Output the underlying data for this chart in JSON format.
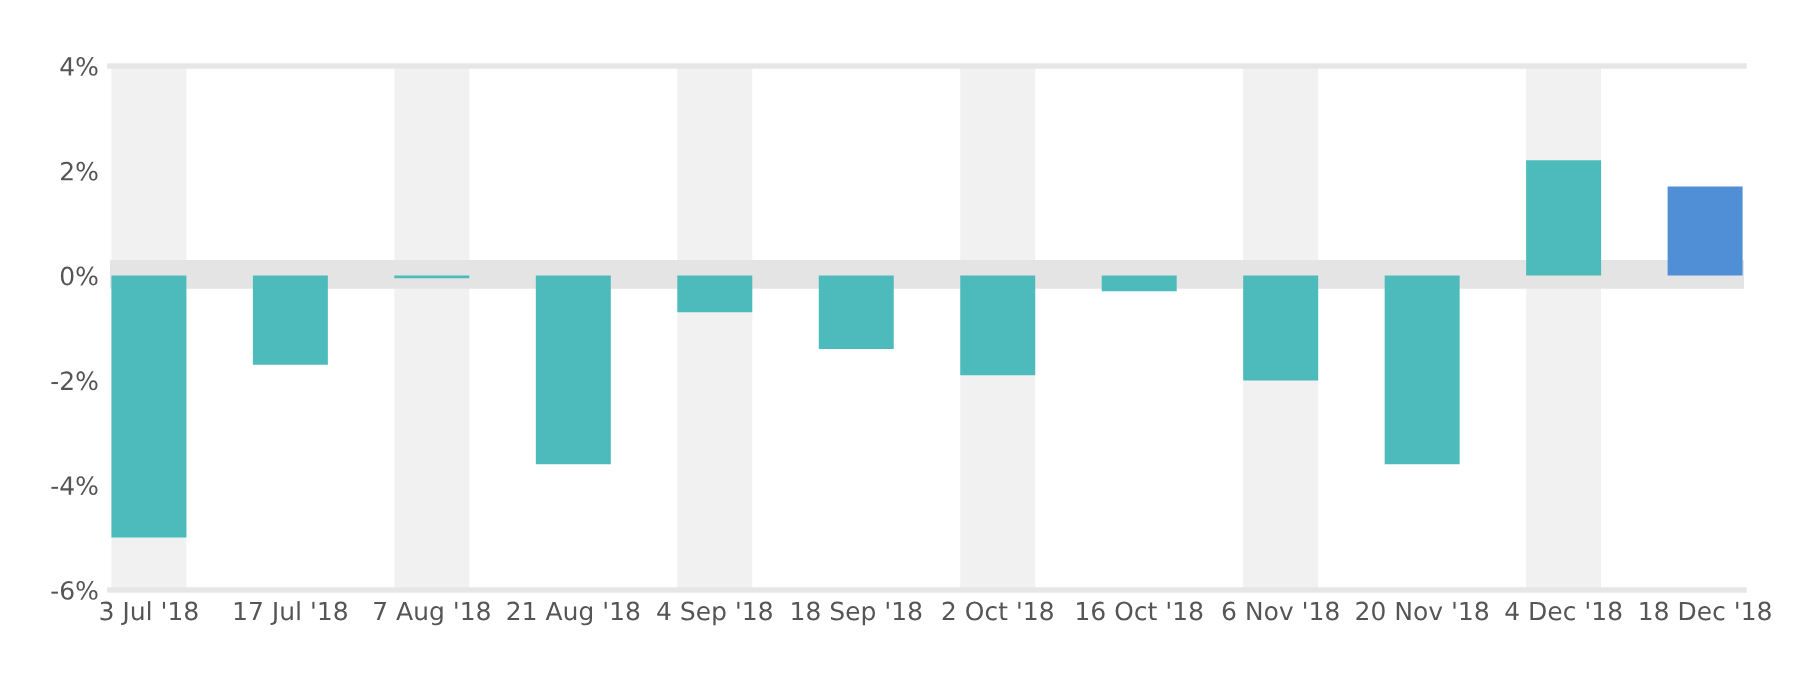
{
  "chart_data": {
    "type": "bar",
    "categories": [
      "3 Jul '18",
      "17 Jul '18",
      "7 Aug '18",
      "21 Aug '18",
      "4 Sep '18",
      "18 Sep '18",
      "2 Oct '18",
      "16 Oct '18",
      "6 Nov '18",
      "20 Nov '18",
      "4 Dec '18",
      "18 Dec '18"
    ],
    "values": [
      -5.0,
      -1.7,
      -0.05,
      -3.6,
      -0.7,
      -1.4,
      -1.9,
      -0.3,
      -2.0,
      -3.6,
      2.2,
      1.7
    ],
    "colors": [
      "#4dbbbb",
      "#4dbbbb",
      "#4dbbbb",
      "#4dbbbb",
      "#4dbbbb",
      "#4dbbbb",
      "#4dbbbb",
      "#4dbbbb",
      "#4dbbbb",
      "#4dbbbb",
      "#4dbbbb",
      "#508fd5"
    ],
    "ylim": [
      -6,
      4
    ],
    "yticks": [
      {
        "value": -6,
        "label": "-6%"
      },
      {
        "value": -4,
        "label": "-4%"
      },
      {
        "value": -2,
        "label": "-2%"
      },
      {
        "value": 0,
        "label": "0%"
      },
      {
        "value": 2,
        "label": "2%"
      },
      {
        "value": 4,
        "label": "4%"
      }
    ],
    "bands": [
      {
        "axis": "y",
        "from": -0.25,
        "to": 0.3,
        "color": "#e4e4e4"
      },
      {
        "axis": "x",
        "from": "3 Jul '18",
        "to": "3 Jul '18",
        "color": "#f1f1f1"
      },
      {
        "axis": "x",
        "from": "7 Aug '18",
        "to": "7 Aug '18",
        "color": "#f1f1f1"
      },
      {
        "axis": "x",
        "from": "4 Sep '18",
        "to": "4 Sep '18",
        "color": "#f1f1f1"
      },
      {
        "axis": "x",
        "from": "2 Oct '18",
        "to": "2 Oct '18",
        "color": "#f1f1f1"
      },
      {
        "axis": "x",
        "from": "6 Nov '18",
        "to": "6 Nov '18",
        "color": "#f1f1f1"
      },
      {
        "axis": "x",
        "from": "4 Dec '18",
        "to": "4 Dec '18",
        "color": "#f1f1f1"
      }
    ],
    "grid": false,
    "legend": false
  }
}
